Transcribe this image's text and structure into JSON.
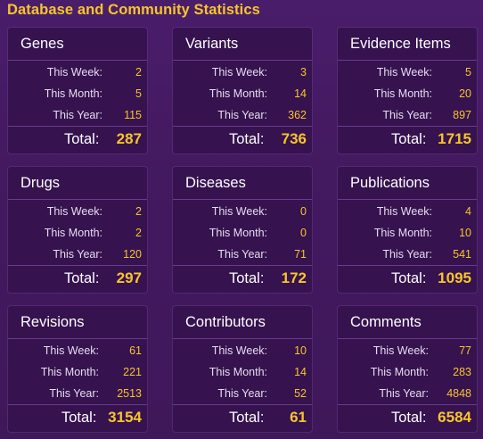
{
  "page": {
    "heading": "Database and Community Statistics"
  },
  "labels": {
    "week": "This Week:",
    "month": "This Month:",
    "year": "This Year:",
    "total": "Total:"
  },
  "cards": [
    {
      "title": "Genes",
      "week": "2",
      "month": "5",
      "year": "115",
      "total": "287"
    },
    {
      "title": "Variants",
      "week": "3",
      "month": "14",
      "year": "362",
      "total": "736"
    },
    {
      "title": "Evidence Items",
      "week": "5",
      "month": "20",
      "year": "897",
      "total": "1715"
    },
    {
      "title": "Drugs",
      "week": "2",
      "month": "2",
      "year": "120",
      "total": "297"
    },
    {
      "title": "Diseases",
      "week": "0",
      "month": "0",
      "year": "71",
      "total": "172"
    },
    {
      "title": "Publications",
      "week": "4",
      "month": "10",
      "year": "541",
      "total": "1095"
    },
    {
      "title": "Revisions",
      "week": "61",
      "month": "221",
      "year": "2513",
      "total": "3154"
    },
    {
      "title": "Contributors",
      "week": "10",
      "month": "14",
      "year": "52",
      "total": "61"
    },
    {
      "title": "Comments",
      "week": "77",
      "month": "283",
      "year": "4848",
      "total": "6584"
    }
  ],
  "colors": {
    "background": "#43195f",
    "card": "#36124f",
    "accent": "#f7c52a",
    "text": "#ffffff"
  }
}
